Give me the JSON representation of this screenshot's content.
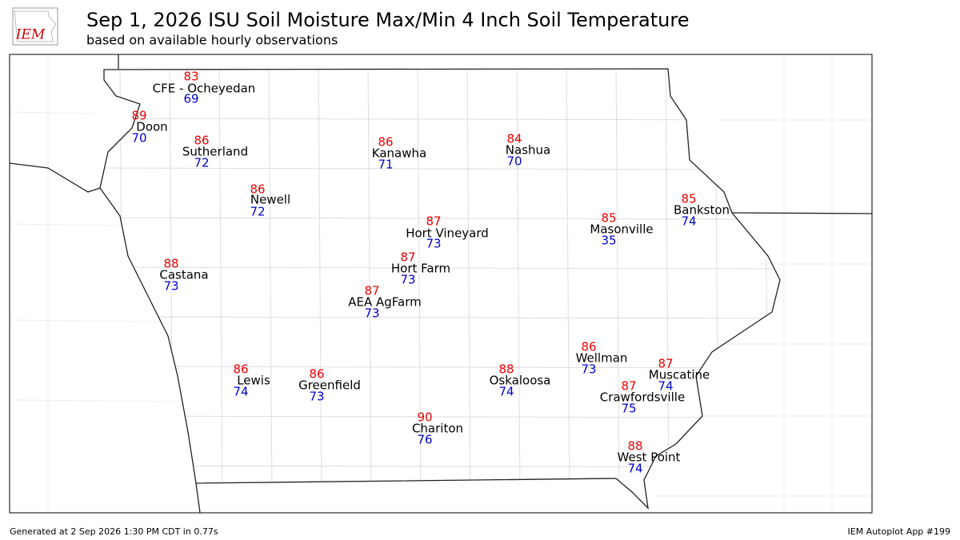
{
  "header": {
    "logo_text": "IEM",
    "title": "Sep 1, 2026 ISU Soil Moisture Max/Min 4 Inch Soil Temperature",
    "subtitle": "based on available hourly observations"
  },
  "stations": [
    {
      "name": "CFE - Ocheyedan",
      "max": 83,
      "min": 69
    },
    {
      "name": "Doon",
      "max": 89,
      "min": 70
    },
    {
      "name": "Sutherland",
      "max": 86,
      "min": 72
    },
    {
      "name": "Kanawha",
      "max": 86,
      "min": 71
    },
    {
      "name": "Nashua",
      "max": 84,
      "min": 70
    },
    {
      "name": "Newell",
      "max": 86,
      "min": 72
    },
    {
      "name": "Bankston",
      "max": 85,
      "min": 74
    },
    {
      "name": "Masonville",
      "max": 85,
      "min": 35
    },
    {
      "name": "Hort Vineyard",
      "max": 87,
      "min": 73
    },
    {
      "name": "Castana",
      "max": 88,
      "min": 73
    },
    {
      "name": "Hort Farm",
      "max": 87,
      "min": 73
    },
    {
      "name": "AEA AgFarm",
      "max": 87,
      "min": 73
    },
    {
      "name": "Wellman",
      "max": 86,
      "min": 73
    },
    {
      "name": "Muscatine",
      "max": 87,
      "min": 74
    },
    {
      "name": "Lewis",
      "max": 86,
      "min": 74
    },
    {
      "name": "Greenfield",
      "max": 86,
      "min": 73
    },
    {
      "name": "Oskaloosa",
      "max": 88,
      "min": 74
    },
    {
      "name": "Crawfordsville",
      "max": 87,
      "min": 75
    },
    {
      "name": "Chariton",
      "max": 90,
      "min": 76
    },
    {
      "name": "West Point",
      "max": 88,
      "min": 74
    }
  ],
  "footer": {
    "left": "Generated at 2 Sep 2026 1:30 PM CDT in 0.77s",
    "right": "IEM Autoplot App #199"
  }
}
